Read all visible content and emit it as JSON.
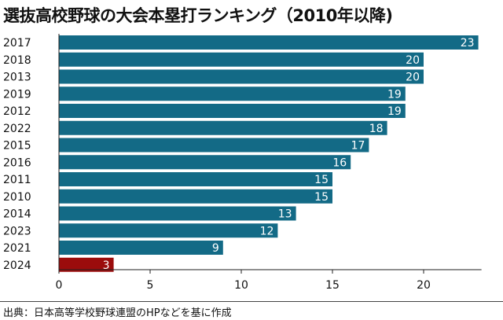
{
  "title": "選抜高校野球の大会本塁打ランキング（2010年以降)",
  "source": "出典：日本高等学校野球連盟のHPなどを基に作成",
  "colors": {
    "bar": "#136a86",
    "highlight": "#9b0c0c",
    "label_on_bar": "#ffffff",
    "axis": "#222222"
  },
  "chart_data": {
    "type": "bar",
    "orientation": "horizontal",
    "title": "選抜高校野球の大会本塁打ランキング（2010年以降)",
    "xlabel": "",
    "ylabel": "",
    "xlim": [
      0,
      23
    ],
    "xticks": [
      0,
      5,
      10,
      15,
      20
    ],
    "grid": false,
    "categories": [
      "2017",
      "2018",
      "2013",
      "2019",
      "2012",
      "2022",
      "2015",
      "2016",
      "2011",
      "2010",
      "2014",
      "2023",
      "2021",
      "2024"
    ],
    "values": [
      23,
      20,
      20,
      19,
      19,
      18,
      17,
      16,
      15,
      15,
      13,
      12,
      9,
      3
    ],
    "highlight": "2024"
  }
}
